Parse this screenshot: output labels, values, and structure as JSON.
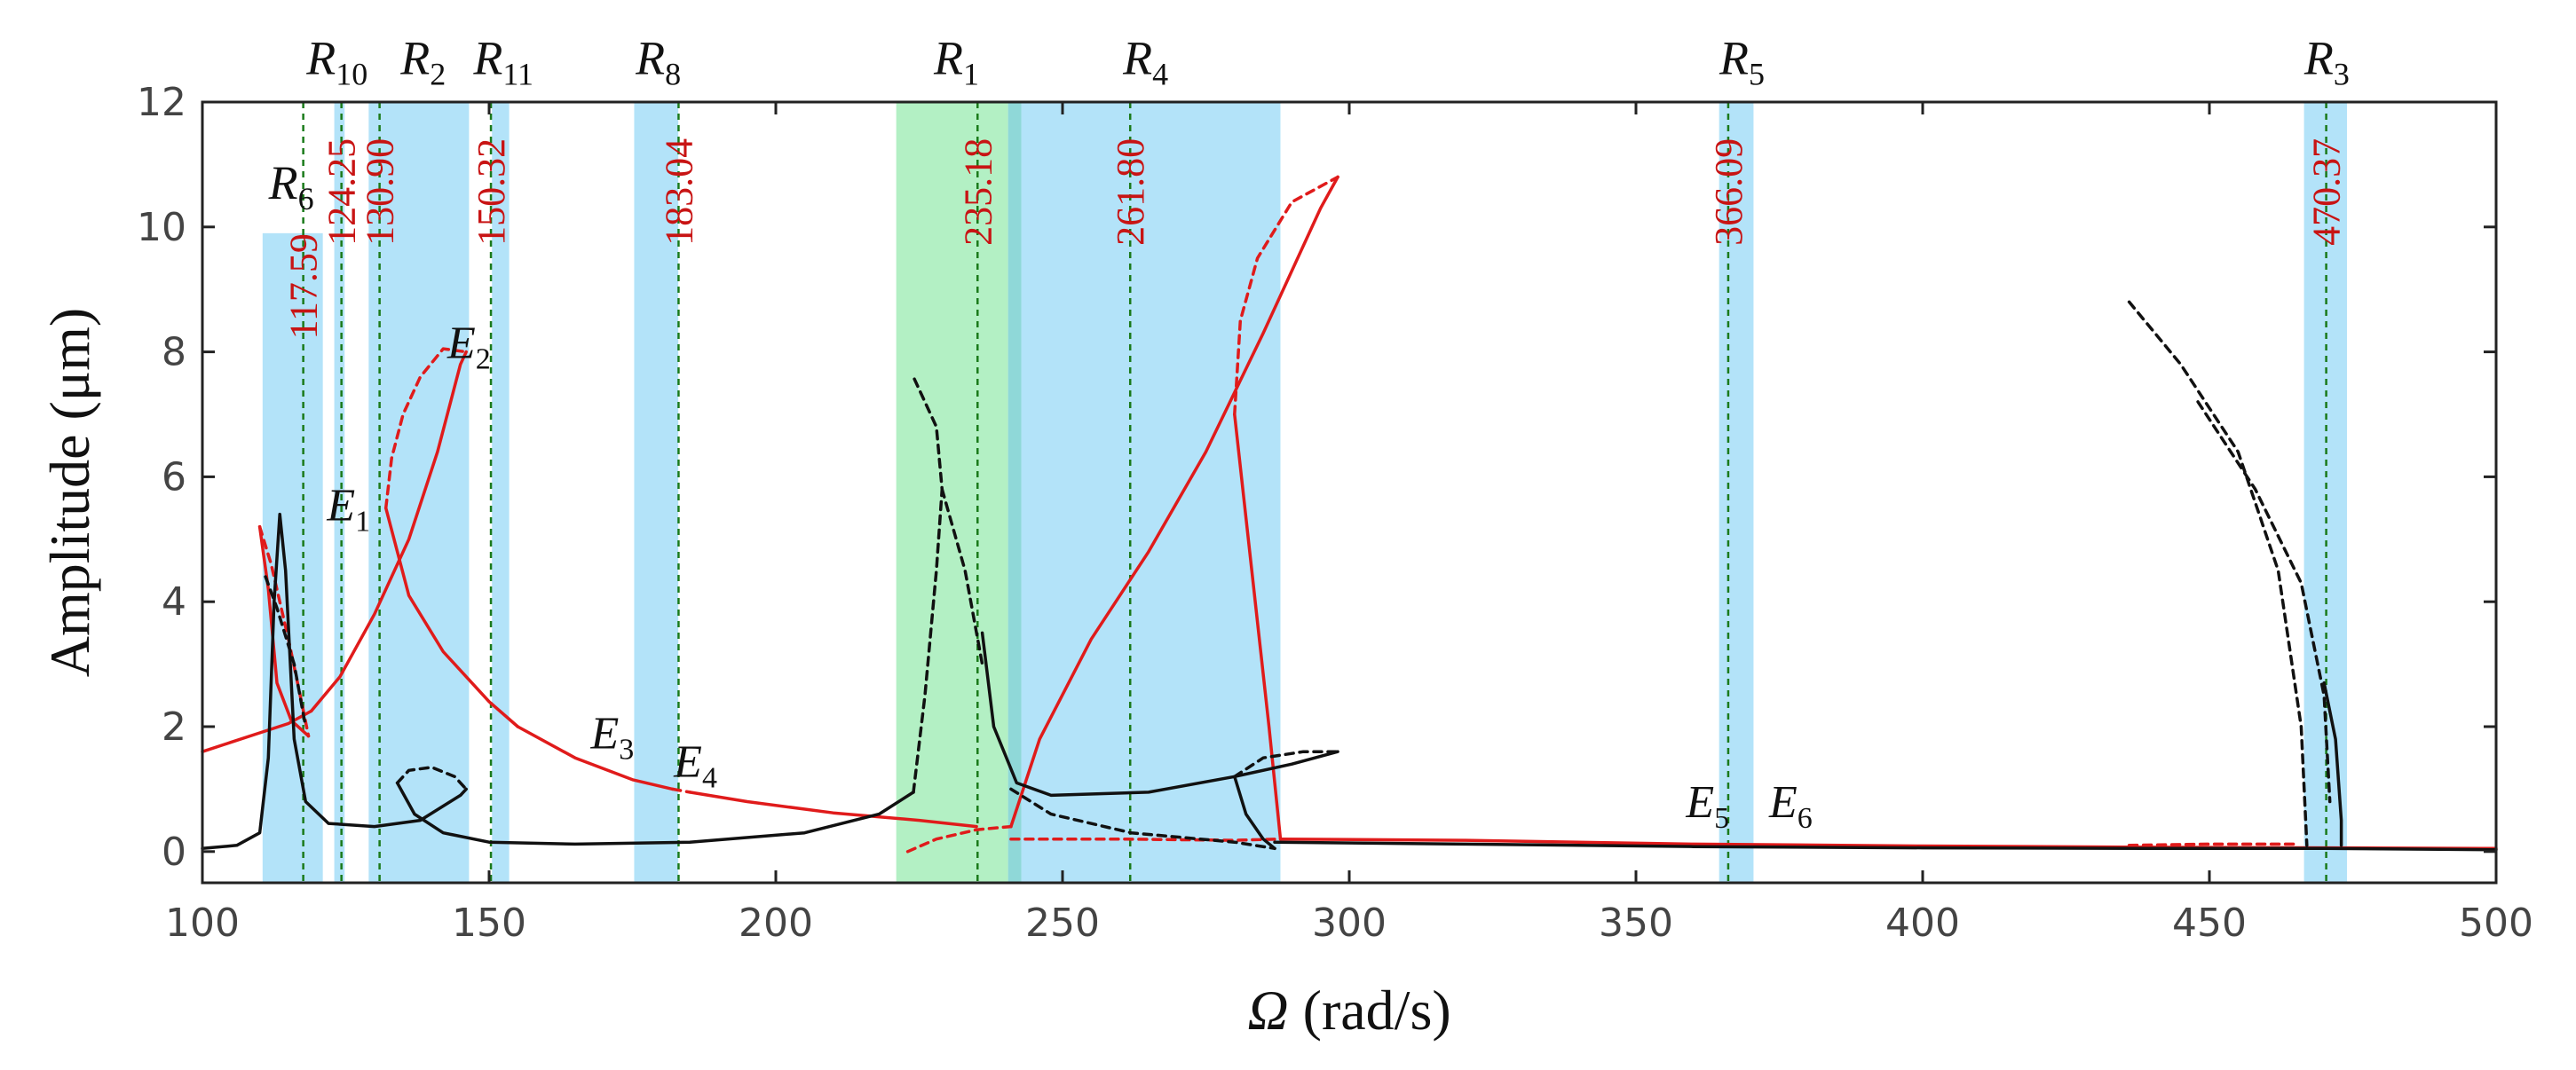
{
  "chart_data": {
    "type": "line",
    "title": "",
    "xlabel": "Ω (rad/s)",
    "xlabel_symbol": "Ω",
    "xlabel_unit": "(rad/s)",
    "ylabel": "Amplitude (μm)",
    "xlim": [
      100,
      500
    ],
    "ylim": [
      -0.5,
      12
    ],
    "xticks": [
      100,
      150,
      200,
      250,
      300,
      350,
      400,
      450,
      500
    ],
    "yticks": [
      0,
      2,
      4,
      6,
      8,
      10,
      12
    ],
    "colors": {
      "red": "#e01b1b",
      "black": "#111111",
      "blue_band": "#b3e3f9",
      "green_band": "#b3f0c4",
      "overlap_band": "#8fd8d8",
      "freq_line": "#1a7a1a",
      "freq_text": "#c81414"
    },
    "bands": [
      {
        "from": 110.5,
        "to": 121.0,
        "ymax": 9.9,
        "color": "blue"
      },
      {
        "from": 123.0,
        "to": 124.8,
        "ymax": 12,
        "color": "blue"
      },
      {
        "from": 129.0,
        "to": 146.5,
        "ymax": 12,
        "color": "blue"
      },
      {
        "from": 150.5,
        "to": 153.5,
        "ymax": 12,
        "color": "blue"
      },
      {
        "from": 175.3,
        "to": 183.0,
        "ymax": 12,
        "color": "blue"
      },
      {
        "from": 221.0,
        "to": 240.5,
        "ymax": 12,
        "color": "green"
      },
      {
        "from": 240.5,
        "to": 242.8,
        "ymax": 12,
        "color": "overlap"
      },
      {
        "from": 242.8,
        "to": 288.0,
        "ymax": 12,
        "color": "blue"
      },
      {
        "from": 364.5,
        "to": 370.5,
        "ymax": 12,
        "color": "blue"
      },
      {
        "from": 466.5,
        "to": 474.0,
        "ymax": 12,
        "color": "blue"
      }
    ],
    "frequency_lines": [
      {
        "x": 117.59,
        "label": "117.59",
        "label_y": 8.2
      },
      {
        "x": 124.25,
        "label": "124.25",
        "label_y": 9.7
      },
      {
        "x": 130.9,
        "label": "130.90",
        "label_y": 9.7
      },
      {
        "x": 150.32,
        "label": "150.32",
        "label_y": 9.7
      },
      {
        "x": 183.04,
        "label": "183.04",
        "label_y": 9.7
      },
      {
        "x": 235.18,
        "label": "235.18",
        "label_y": 9.7
      },
      {
        "x": 261.8,
        "label": "261.80",
        "label_y": 9.7
      },
      {
        "x": 366.09,
        "label": "366.09",
        "label_y": 9.7
      },
      {
        "x": 470.37,
        "label": "470.37",
        "label_y": 9.7
      }
    ],
    "region_labels": [
      {
        "main": "R",
        "sub": "6",
        "x": 115.5,
        "y": 10.45
      },
      {
        "main": "R",
        "sub": "10",
        "x": 123.5,
        "y": 12.45
      },
      {
        "main": "R",
        "sub": "2",
        "x": 138.5,
        "y": 12.45
      },
      {
        "main": "R",
        "sub": "11",
        "x": 152.5,
        "y": 12.45
      },
      {
        "main": "R",
        "sub": "8",
        "x": 179.5,
        "y": 12.45
      },
      {
        "main": "R",
        "sub": "1",
        "x": 231.5,
        "y": 12.45
      },
      {
        "main": "R",
        "sub": "4",
        "x": 264.5,
        "y": 12.45
      },
      {
        "main": "R",
        "sub": "5",
        "x": 368.5,
        "y": 12.45
      },
      {
        "main": "R",
        "sub": "3",
        "x": 470.5,
        "y": 12.45
      }
    ],
    "point_labels": [
      {
        "main": "E",
        "sub": "1",
        "x": 125.5,
        "y": 5.3
      },
      {
        "main": "E",
        "sub": "2",
        "x": 146.5,
        "y": 7.9
      },
      {
        "main": "E",
        "sub": "3",
        "x": 171.5,
        "y": 1.65
      },
      {
        "main": "E",
        "sub": "4",
        "x": 186.0,
        "y": 1.2
      },
      {
        "main": "E",
        "sub": "5",
        "x": 362.5,
        "y": 0.55
      },
      {
        "main": "E",
        "sub": "6",
        "x": 377.0,
        "y": 0.55
      }
    ],
    "series": [
      {
        "name": "red-stable-1",
        "color": "red",
        "style": "solid",
        "points": [
          [
            100,
            1.6
          ],
          [
            105,
            1.75
          ],
          [
            110,
            1.9
          ],
          [
            115,
            2.05
          ],
          [
            119,
            2.25
          ]
        ]
      },
      {
        "name": "red-stable-2",
        "color": "red",
        "style": "solid",
        "points": [
          [
            110,
            5.2
          ],
          [
            111.5,
            4.2
          ],
          [
            113,
            2.7
          ],
          [
            115.5,
            2.1
          ],
          [
            118.5,
            1.85
          ]
        ]
      },
      {
        "name": "red-unstable-1",
        "color": "red",
        "style": "dashed",
        "points": [
          [
            110,
            5.2
          ],
          [
            112,
            4.6
          ],
          [
            115,
            3.4
          ],
          [
            117.5,
            2.3
          ],
          [
            118.5,
            1.85
          ]
        ]
      },
      {
        "name": "red-stable-3",
        "color": "red",
        "style": "solid",
        "points": [
          [
            119,
            2.25
          ],
          [
            124,
            2.8
          ],
          [
            130,
            3.8
          ],
          [
            136,
            5.0
          ],
          [
            141,
            6.4
          ],
          [
            145,
            7.8
          ],
          [
            146,
            8.0
          ]
        ]
      },
      {
        "name": "red-unstable-2",
        "color": "red",
        "style": "dashed",
        "points": [
          [
            132,
            5.5
          ],
          [
            133,
            6.3
          ],
          [
            135,
            7.0
          ],
          [
            138,
            7.6
          ],
          [
            142,
            8.05
          ],
          [
            146,
            8.0
          ]
        ]
      },
      {
        "name": "red-stable-4",
        "color": "red",
        "style": "solid",
        "points": [
          [
            132,
            5.5
          ],
          [
            136,
            4.1
          ],
          [
            142,
            3.2
          ],
          [
            150,
            2.4
          ],
          [
            155,
            2.0
          ]
        ]
      },
      {
        "name": "red-stable-5",
        "color": "red",
        "style": "solid",
        "points": [
          [
            155,
            2.0
          ],
          [
            165,
            1.5
          ],
          [
            175,
            1.15
          ],
          [
            182,
            1.0
          ]
        ]
      },
      {
        "name": "red-unstable-3",
        "color": "red",
        "style": "dashed",
        "points": [
          [
            182,
            1.0
          ],
          [
            185,
            0.95
          ]
        ]
      },
      {
        "name": "red-stable-6",
        "color": "red",
        "style": "solid",
        "points": [
          [
            185,
            0.95
          ],
          [
            195,
            0.8
          ],
          [
            210,
            0.62
          ],
          [
            225,
            0.5
          ],
          [
            235,
            0.4
          ]
        ]
      },
      {
        "name": "red-unstable-4",
        "color": "red",
        "style": "dashed",
        "points": [
          [
            223,
            0.0
          ],
          [
            228,
            0.2
          ],
          [
            235,
            0.35
          ],
          [
            241,
            0.4
          ]
        ]
      },
      {
        "name": "red-stable-7",
        "color": "red",
        "style": "solid",
        "points": [
          [
            241,
            0.4
          ],
          [
            246,
            1.8
          ],
          [
            255,
            3.4
          ],
          [
            265,
            4.8
          ],
          [
            275,
            6.4
          ],
          [
            285,
            8.3
          ],
          [
            295,
            10.3
          ],
          [
            298,
            10.8
          ]
        ]
      },
      {
        "name": "red-unstable-5",
        "color": "red",
        "style": "dashed",
        "points": [
          [
            280,
            7.0
          ],
          [
            281,
            8.5
          ],
          [
            284,
            9.5
          ],
          [
            290,
            10.4
          ],
          [
            298,
            10.8
          ]
        ]
      },
      {
        "name": "red-stable-8",
        "color": "red",
        "style": "solid",
        "points": [
          [
            280,
            7.0
          ],
          [
            283,
            4.5
          ],
          [
            286,
            2.0
          ],
          [
            288,
            0.2
          ]
        ]
      },
      {
        "name": "red-stable-9",
        "color": "red",
        "style": "solid",
        "points": [
          [
            288,
            0.2
          ],
          [
            320,
            0.18
          ],
          [
            360,
            0.12
          ],
          [
            400,
            0.09
          ],
          [
            440,
            0.07
          ],
          [
            500,
            0.05
          ]
        ]
      },
      {
        "name": "red-unstable-6",
        "color": "red",
        "style": "dashed",
        "points": [
          [
            436,
            0.1
          ],
          [
            450,
            0.12
          ],
          [
            465,
            0.12
          ]
        ]
      },
      {
        "name": "red-unstable-7",
        "color": "red",
        "style": "dashed",
        "points": [
          [
            241,
            0.2
          ],
          [
            260,
            0.2
          ],
          [
            280,
            0.18
          ],
          [
            288,
            0.2
          ]
        ]
      },
      {
        "name": "black-stable-1",
        "color": "black",
        "style": "solid",
        "points": [
          [
            100,
            0.05
          ],
          [
            106,
            0.1
          ],
          [
            110,
            0.3
          ],
          [
            111.5,
            1.5
          ],
          [
            112.5,
            4.0
          ],
          [
            113.5,
            5.4
          ],
          [
            114.5,
            4.5
          ],
          [
            116,
            1.8
          ],
          [
            118,
            0.8
          ],
          [
            122,
            0.45
          ],
          [
            130,
            0.4
          ],
          [
            138,
            0.5
          ],
          [
            145,
            0.9
          ],
          [
            146,
            1.0
          ]
        ]
      },
      {
        "name": "black-unstable-1",
        "color": "black",
        "style": "dashed",
        "points": [
          [
            111,
            4.4
          ],
          [
            113,
            3.9
          ],
          [
            116,
            3.0
          ],
          [
            118,
            2.0
          ]
        ]
      },
      {
        "name": "black-unstable-2",
        "color": "black",
        "style": "dashed",
        "points": [
          [
            134,
            1.1
          ],
          [
            136,
            1.3
          ],
          [
            140,
            1.35
          ],
          [
            144,
            1.2
          ],
          [
            146,
            1.0
          ]
        ]
      },
      {
        "name": "black-stable-2",
        "color": "black",
        "style": "solid",
        "points": [
          [
            134,
            1.1
          ],
          [
            137,
            0.6
          ],
          [
            142,
            0.3
          ],
          [
            150,
            0.15
          ],
          [
            165,
            0.12
          ],
          [
            185,
            0.15
          ],
          [
            205,
            0.3
          ],
          [
            218,
            0.6
          ],
          [
            224,
            0.95
          ]
        ]
      },
      {
        "name": "black-unstable-3",
        "color": "black",
        "style": "dashed",
        "points": [
          [
            224,
            0.95
          ],
          [
            226,
            2.5
          ],
          [
            228,
            4.5
          ],
          [
            229,
            5.8
          ],
          [
            228,
            6.8
          ],
          [
            224,
            7.6
          ]
        ]
      },
      {
        "name": "black-unstable-4",
        "color": "black",
        "style": "dashed",
        "points": [
          [
            229,
            5.8
          ],
          [
            233,
            4.5
          ],
          [
            236,
            3.0
          ]
        ]
      },
      {
        "name": "black-stable-3",
        "color": "black",
        "style": "solid",
        "points": [
          [
            236,
            3.5
          ],
          [
            238,
            2.0
          ],
          [
            242,
            1.1
          ],
          [
            248,
            0.9
          ],
          [
            265,
            0.95
          ],
          [
            280,
            1.2
          ],
          [
            290,
            1.4
          ],
          [
            298,
            1.6
          ]
        ]
      },
      {
        "name": "black-unstable-5",
        "color": "black",
        "style": "dashed",
        "points": [
          [
            280,
            1.2
          ],
          [
            285,
            1.5
          ],
          [
            292,
            1.6
          ],
          [
            298,
            1.6
          ]
        ]
      },
      {
        "name": "black-stable-4",
        "color": "black",
        "style": "solid",
        "points": [
          [
            280,
            1.2
          ],
          [
            282,
            0.6
          ],
          [
            285,
            0.2
          ],
          [
            287,
            0.05
          ]
        ]
      },
      {
        "name": "black-unstable-6",
        "color": "black",
        "style": "dashed",
        "points": [
          [
            241,
            1.0
          ],
          [
            248,
            0.6
          ],
          [
            262,
            0.3
          ],
          [
            280,
            0.15
          ],
          [
            287,
            0.05
          ]
        ]
      },
      {
        "name": "black-stable-5",
        "color": "black",
        "style": "solid",
        "points": [
          [
            287,
            0.15
          ],
          [
            320,
            0.12
          ],
          [
            360,
            0.08
          ],
          [
            400,
            0.06
          ],
          [
            440,
            0.05
          ],
          [
            470,
            0.05
          ],
          [
            500,
            0.03
          ]
        ]
      },
      {
        "name": "black-unstable-7",
        "color": "black",
        "style": "dashed",
        "points": [
          [
            436,
            8.8
          ],
          [
            445,
            7.8
          ],
          [
            455,
            6.4
          ],
          [
            462,
            4.5
          ],
          [
            466,
            2.0
          ],
          [
            467,
            0.1
          ]
        ]
      },
      {
        "name": "black-unstable-8",
        "color": "black",
        "style": "dashed",
        "points": [
          [
            448,
            7.2
          ],
          [
            458,
            5.8
          ],
          [
            466,
            4.3
          ],
          [
            470,
            2.5
          ],
          [
            471,
            0.8
          ]
        ]
      },
      {
        "name": "black-stable-6",
        "color": "black",
        "style": "solid",
        "points": [
          [
            470,
            2.7
          ],
          [
            472,
            1.8
          ],
          [
            473,
            0.5
          ],
          [
            473,
            0.1
          ]
        ]
      }
    ]
  }
}
